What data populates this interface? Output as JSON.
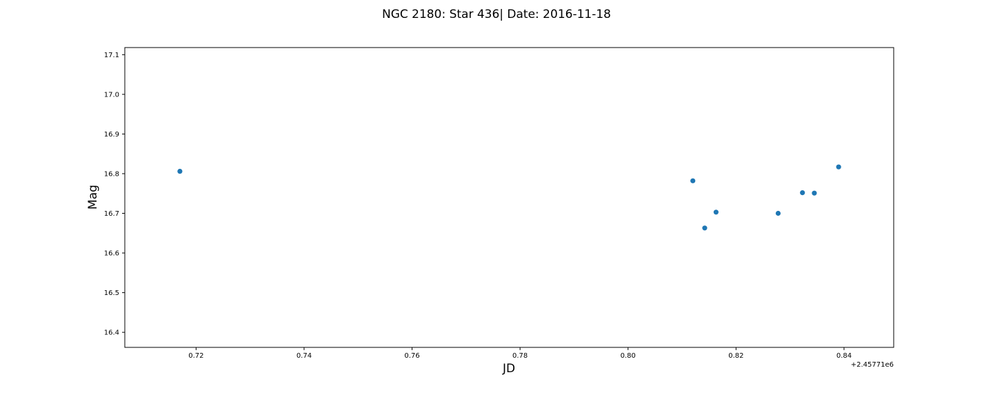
{
  "chart_data": {
    "type": "scatter",
    "title": "NGC 2180: Star 436| Date: 2016-11-18",
    "xlabel": "JD",
    "ylabel": "Mag",
    "x_offset_label": "+2.45771e6",
    "x_offset": 2457710,
    "xlim": [
      2457710.7068,
      2457710.8492
    ],
    "ylim": [
      16.362,
      17.118
    ],
    "xticks": [
      0.72,
      0.74,
      0.76,
      0.78,
      0.8,
      0.82,
      0.84
    ],
    "xtick_labels": [
      "0.72",
      "0.74",
      "0.76",
      "0.78",
      "0.80",
      "0.82",
      "0.84"
    ],
    "yticks": [
      16.4,
      16.5,
      16.6,
      16.7,
      16.8,
      16.9,
      17.0,
      17.1
    ],
    "ytick_labels": [
      "16.4",
      "16.5",
      "16.6",
      "16.7",
      "16.8",
      "16.9",
      "17.0",
      "17.1"
    ],
    "grid": false,
    "point_color": "#1f77b4",
    "points": [
      {
        "x": 2457710.717,
        "y": 16.806
      },
      {
        "x": 2457710.812,
        "y": 16.782
      },
      {
        "x": 2457710.8142,
        "y": 16.663
      },
      {
        "x": 2457710.8163,
        "y": 16.703
      },
      {
        "x": 2457710.8278,
        "y": 16.7
      },
      {
        "x": 2457710.8323,
        "y": 16.752
      },
      {
        "x": 2457710.8345,
        "y": 16.751
      },
      {
        "x": 2457710.839,
        "y": 16.817
      }
    ]
  }
}
